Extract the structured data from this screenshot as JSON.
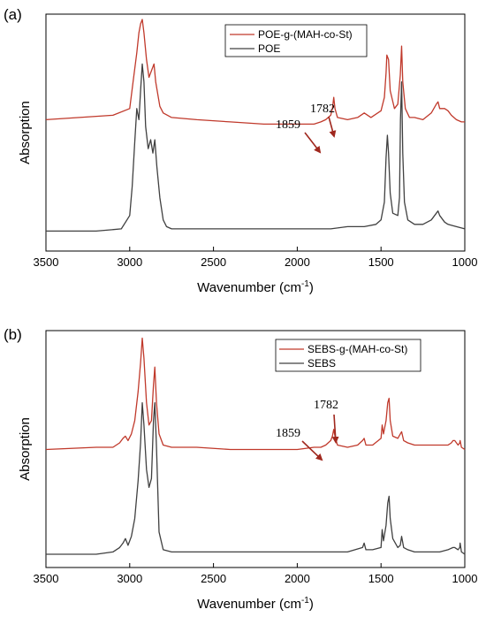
{
  "panels": [
    {
      "label": "(a)",
      "xlabel": "Wavenumber (cm",
      "xlabel_sup": "-1",
      "xlabel_close": ")",
      "ylabel": "Absorption",
      "legend": [
        "POE-g-(MAH-co-St)",
        "POE"
      ],
      "annotations": [
        "1859",
        "1782"
      ]
    },
    {
      "label": "(b)",
      "xlabel": "Wavenumber (cm",
      "xlabel_sup": "-1",
      "xlabel_close": ")",
      "ylabel": "Absorption",
      "legend": [
        "SEBS-g-(MAH-co-St)",
        "SEBS"
      ],
      "annotations": [
        "1859",
        "1782"
      ]
    }
  ],
  "chart_data": [
    {
      "type": "line",
      "panel": "(a)",
      "xlabel": "Wavenumber (cm-1)",
      "ylabel": "Absorption",
      "xlim": [
        3500,
        1000
      ],
      "x_reversed": true,
      "xticks": [
        3500,
        3000,
        2500,
        2000,
        1500,
        1000
      ],
      "ylim": [
        0,
        1
      ],
      "grid": false,
      "legend_position": "top-center",
      "colors": {
        "grafted": "#c0392b",
        "base": "#404040"
      },
      "series": [
        {
          "name": "POE-g-(MAH-co-St)",
          "color": "#c0392b",
          "x": [
            3500,
            3300,
            3100,
            3000,
            2980,
            2958,
            2945,
            2935,
            2925,
            2915,
            2900,
            2885,
            2870,
            2855,
            2845,
            2820,
            2800,
            2750,
            2600,
            2400,
            2200,
            2000,
            1900,
            1859,
            1830,
            1800,
            1790,
            1782,
            1775,
            1760,
            1700,
            1640,
            1600,
            1560,
            1500,
            1480,
            1470,
            1465,
            1455,
            1445,
            1420,
            1400,
            1385,
            1377,
            1370,
            1355,
            1330,
            1300,
            1250,
            1200,
            1170,
            1160,
            1150,
            1120,
            1100,
            1080,
            1050,
            1020,
            1000
          ],
          "values": [
            0.55,
            0.56,
            0.57,
            0.6,
            0.72,
            0.85,
            0.94,
            0.98,
            1.0,
            0.94,
            0.82,
            0.74,
            0.77,
            0.8,
            0.72,
            0.61,
            0.58,
            0.56,
            0.55,
            0.54,
            0.53,
            0.53,
            0.53,
            0.54,
            0.55,
            0.57,
            0.6,
            0.65,
            0.6,
            0.56,
            0.55,
            0.56,
            0.58,
            0.56,
            0.59,
            0.65,
            0.76,
            0.84,
            0.82,
            0.68,
            0.6,
            0.62,
            0.75,
            0.88,
            0.72,
            0.6,
            0.56,
            0.56,
            0.55,
            0.58,
            0.62,
            0.63,
            0.6,
            0.6,
            0.59,
            0.57,
            0.55,
            0.54,
            0.54
          ]
        },
        {
          "name": "POE",
          "color": "#404040",
          "x": [
            3500,
            3200,
            3050,
            3000,
            2985,
            2970,
            2958,
            2945,
            2935,
            2925,
            2915,
            2905,
            2890,
            2875,
            2862,
            2850,
            2838,
            2820,
            2800,
            2780,
            2750,
            2600,
            2400,
            2200,
            2000,
            1800,
            1700,
            1600,
            1530,
            1500,
            1480,
            1470,
            1462,
            1455,
            1445,
            1430,
            1400,
            1390,
            1384,
            1377,
            1370,
            1360,
            1340,
            1300,
            1250,
            1200,
            1170,
            1160,
            1150,
            1120,
            1100,
            1050,
            1000
          ],
          "values": [
            0.05,
            0.05,
            0.06,
            0.12,
            0.25,
            0.45,
            0.6,
            0.55,
            0.68,
            0.8,
            0.72,
            0.52,
            0.42,
            0.46,
            0.4,
            0.46,
            0.34,
            0.2,
            0.1,
            0.07,
            0.06,
            0.06,
            0.06,
            0.06,
            0.06,
            0.06,
            0.07,
            0.07,
            0.08,
            0.1,
            0.18,
            0.38,
            0.48,
            0.4,
            0.22,
            0.13,
            0.12,
            0.2,
            0.55,
            0.72,
            0.4,
            0.18,
            0.1,
            0.08,
            0.08,
            0.1,
            0.13,
            0.14,
            0.12,
            0.09,
            0.08,
            0.07,
            0.06
          ]
        }
      ],
      "annotations": [
        {
          "text": "1859",
          "x": 1859
        },
        {
          "text": "1782",
          "x": 1782
        }
      ]
    },
    {
      "type": "line",
      "panel": "(b)",
      "xlabel": "Wavenumber (cm-1)",
      "ylabel": "Absorption",
      "xlim": [
        3500,
        1000
      ],
      "x_reversed": true,
      "xticks": [
        3500,
        3000,
        2500,
        2000,
        1500,
        1000
      ],
      "ylim": [
        0,
        1
      ],
      "grid": false,
      "legend_position": "top-right",
      "colors": {
        "grafted": "#c0392b",
        "base": "#404040"
      },
      "series": [
        {
          "name": "SEBS-g-(MAH-co-St)",
          "color": "#c0392b",
          "x": [
            3500,
            3200,
            3100,
            3080,
            3060,
            3040,
            3026,
            3010,
            2990,
            2970,
            2950,
            2935,
            2925,
            2915,
            2900,
            2885,
            2870,
            2858,
            2850,
            2840,
            2825,
            2800,
            2750,
            2600,
            2400,
            2200,
            2000,
            1900,
            1859,
            1830,
            1800,
            1790,
            1782,
            1775,
            1760,
            1700,
            1640,
            1610,
            1601,
            1590,
            1550,
            1500,
            1493,
            1485,
            1470,
            1460,
            1452,
            1445,
            1430,
            1400,
            1385,
            1377,
            1365,
            1340,
            1300,
            1250,
            1200,
            1150,
            1100,
            1080,
            1070,
            1060,
            1040,
            1030,
            1028,
            1020,
            1000
          ],
          "values": [
            0.49,
            0.5,
            0.5,
            0.51,
            0.52,
            0.54,
            0.55,
            0.53,
            0.56,
            0.62,
            0.75,
            0.88,
            0.99,
            0.9,
            0.7,
            0.6,
            0.62,
            0.78,
            0.86,
            0.7,
            0.56,
            0.51,
            0.5,
            0.5,
            0.49,
            0.49,
            0.49,
            0.5,
            0.5,
            0.51,
            0.53,
            0.55,
            0.58,
            0.55,
            0.51,
            0.5,
            0.51,
            0.53,
            0.54,
            0.51,
            0.51,
            0.54,
            0.6,
            0.56,
            0.62,
            0.7,
            0.72,
            0.62,
            0.55,
            0.54,
            0.56,
            0.57,
            0.53,
            0.52,
            0.51,
            0.51,
            0.51,
            0.51,
            0.51,
            0.52,
            0.53,
            0.53,
            0.51,
            0.52,
            0.53,
            0.5,
            0.49
          ]
        },
        {
          "name": "SEBS",
          "color": "#404040",
          "x": [
            3500,
            3200,
            3100,
            3080,
            3060,
            3040,
            3026,
            3010,
            2990,
            2970,
            2950,
            2935,
            2925,
            2915,
            2900,
            2885,
            2870,
            2858,
            2850,
            2840,
            2825,
            2800,
            2750,
            2600,
            2400,
            2200,
            2000,
            1800,
            1700,
            1610,
            1601,
            1590,
            1550,
            1500,
            1493,
            1485,
            1470,
            1460,
            1452,
            1445,
            1430,
            1400,
            1385,
            1377,
            1365,
            1340,
            1300,
            1250,
            1200,
            1150,
            1100,
            1070,
            1060,
            1040,
            1030,
            1028,
            1020,
            1000
          ],
          "values": [
            0.02,
            0.02,
            0.03,
            0.04,
            0.05,
            0.07,
            0.09,
            0.06,
            0.1,
            0.18,
            0.35,
            0.52,
            0.7,
            0.6,
            0.4,
            0.32,
            0.36,
            0.62,
            0.7,
            0.5,
            0.12,
            0.04,
            0.03,
            0.03,
            0.03,
            0.03,
            0.03,
            0.03,
            0.03,
            0.05,
            0.07,
            0.04,
            0.04,
            0.05,
            0.13,
            0.08,
            0.15,
            0.25,
            0.28,
            0.18,
            0.09,
            0.05,
            0.06,
            0.1,
            0.05,
            0.04,
            0.03,
            0.03,
            0.03,
            0.03,
            0.04,
            0.05,
            0.05,
            0.04,
            0.05,
            0.07,
            0.03,
            0.02
          ]
        }
      ],
      "annotations": [
        {
          "text": "1859",
          "x": 1859
        },
        {
          "text": "1782",
          "x": 1782
        }
      ]
    }
  ]
}
